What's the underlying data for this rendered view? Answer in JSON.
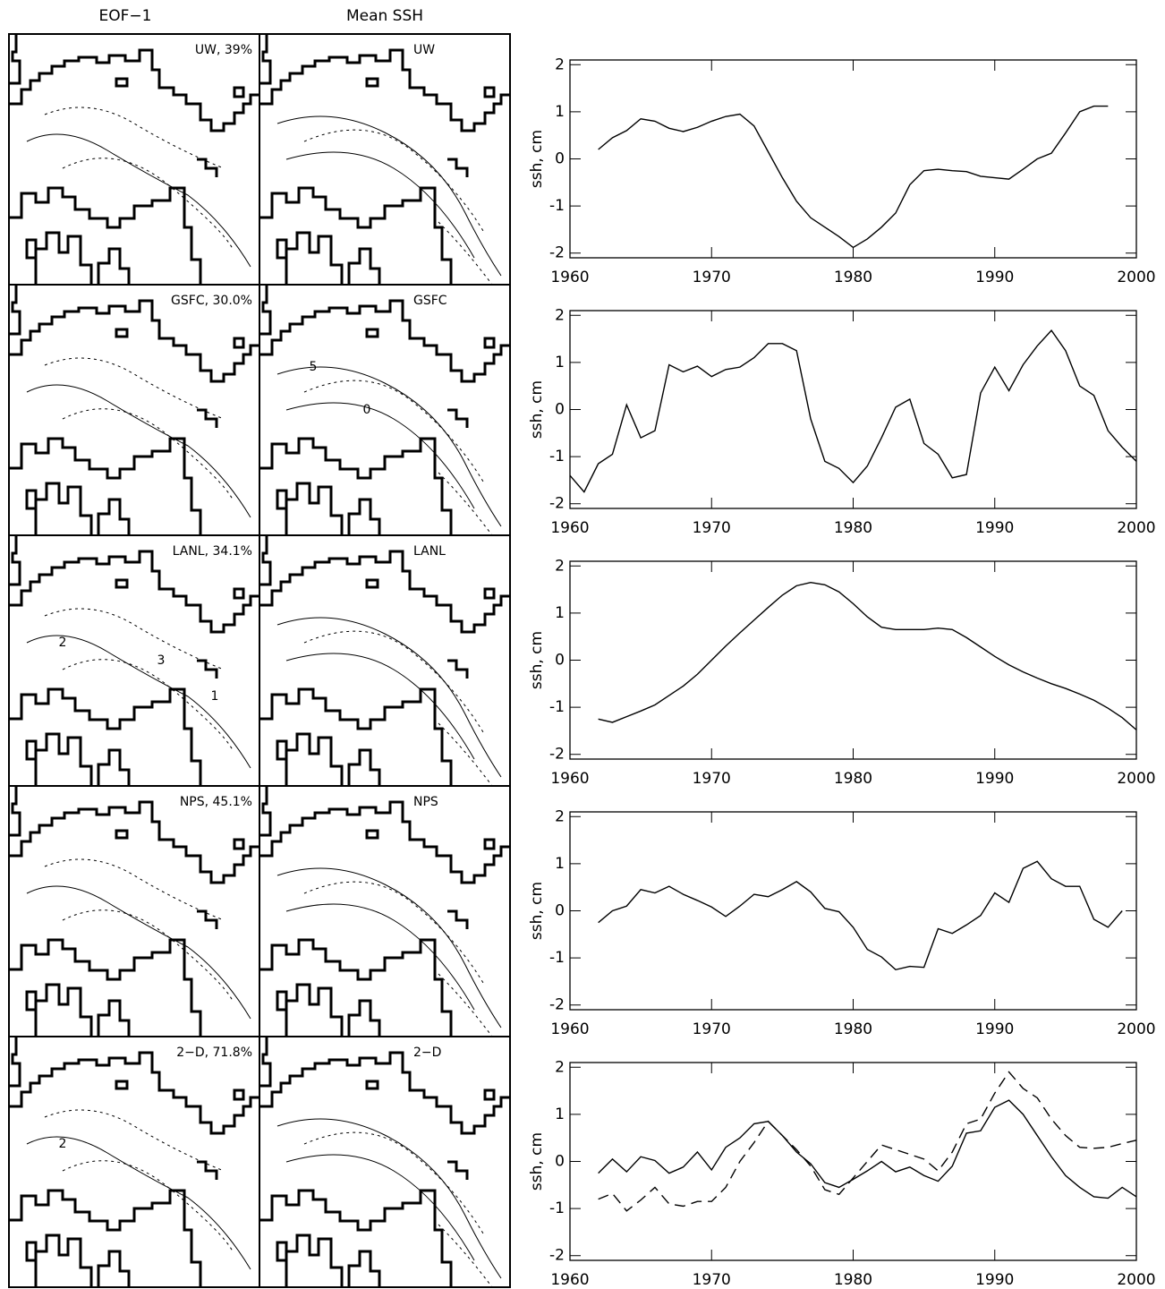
{
  "column_titles": [
    "EOF−1",
    "Mean SSH"
  ],
  "maps": [
    {
      "eof_label": "UW, 39%",
      "mean_label": "UW"
    },
    {
      "eof_label": "GSFC, 30.0%",
      "mean_label": "GSFC",
      "mean_contour_labels": [
        "5",
        "0"
      ]
    },
    {
      "eof_label": "LANL, 34.1%",
      "mean_label": "LANL",
      "eof_contour_labels": [
        "2",
        "3",
        "1"
      ]
    },
    {
      "eof_label": "NPS, 45.1%",
      "mean_label": "NPS"
    },
    {
      "eof_label": "2−D, 71.8%",
      "mean_label": "2−D",
      "eof_contour_labels": [
        "2"
      ]
    }
  ],
  "chart_data": [
    {
      "type": "line",
      "y_label": "ssh, cm",
      "xlim": [
        1960,
        2000
      ],
      "ylim": [
        -2.1,
        2.1
      ],
      "xticks": [
        1960,
        1970,
        1980,
        1990,
        2000
      ],
      "yticks": [
        -2,
        -1,
        0,
        1,
        2
      ],
      "x": [
        1962,
        1963,
        1964,
        1965,
        1966,
        1967,
        1968,
        1969,
        1970,
        1971,
        1972,
        1973,
        1974,
        1975,
        1976,
        1977,
        1978,
        1979,
        1980,
        1981,
        1982,
        1983,
        1984,
        1985,
        1986,
        1987,
        1988,
        1989,
        1990,
        1991,
        1992,
        1993,
        1994,
        1995,
        1996,
        1997,
        1998
      ],
      "series": [
        {
          "color": "#000000",
          "dash": "solid",
          "values": [
            0.2,
            0.45,
            0.6,
            0.85,
            0.8,
            0.65,
            0.58,
            0.67,
            0.8,
            0.9,
            0.95,
            0.7,
            0.15,
            -0.4,
            -0.9,
            -1.25,
            -1.45,
            -1.65,
            -1.88,
            -1.7,
            -1.45,
            -1.15,
            -0.55,
            -0.25,
            -0.22,
            -0.25,
            -0.27,
            -0.37,
            -0.4,
            -0.43,
            -0.22,
            0.0,
            0.12,
            0.55,
            1.0,
            1.12,
            1.12
          ]
        }
      ]
    },
    {
      "type": "line",
      "y_label": "ssh, cm",
      "xlim": [
        1960,
        2000
      ],
      "ylim": [
        -2.1,
        2.1
      ],
      "xticks": [
        1960,
        1970,
        1980,
        1990,
        2000
      ],
      "yticks": [
        -2,
        -1,
        0,
        1,
        2
      ],
      "x": [
        1960,
        1961,
        1962,
        1963,
        1964,
        1965,
        1966,
        1967,
        1968,
        1969,
        1970,
        1971,
        1972,
        1973,
        1974,
        1975,
        1976,
        1977,
        1978,
        1979,
        1980,
        1981,
        1982,
        1983,
        1984,
        1985,
        1986,
        1987,
        1988,
        1989,
        1990,
        1991,
        1992,
        1993,
        1994,
        1995,
        1996,
        1997,
        1998,
        1999,
        2000
      ],
      "series": [
        {
          "color": "#000000",
          "dash": "solid",
          "values": [
            -1.4,
            -1.75,
            -1.15,
            -0.95,
            0.1,
            -0.6,
            -0.45,
            0.95,
            0.8,
            0.92,
            0.7,
            0.85,
            0.9,
            1.1,
            1.4,
            1.4,
            1.25,
            -0.2,
            -1.1,
            -1.25,
            -1.55,
            -1.2,
            -0.6,
            0.05,
            0.22,
            -0.72,
            -0.95,
            -1.45,
            -1.38,
            0.35,
            0.9,
            0.4,
            0.95,
            1.35,
            1.68,
            1.25,
            0.5,
            0.3,
            -0.45,
            -0.8,
            -1.1
          ]
        }
      ]
    },
    {
      "type": "line",
      "y_label": "ssh, cm",
      "xlim": [
        1960,
        2000
      ],
      "ylim": [
        -2.1,
        2.1
      ],
      "xticks": [
        1960,
        1970,
        1980,
        1990,
        2000
      ],
      "yticks": [
        -2,
        -1,
        0,
        1,
        2
      ],
      "x": [
        1962,
        1963,
        1964,
        1965,
        1966,
        1967,
        1968,
        1969,
        1970,
        1971,
        1972,
        1973,
        1974,
        1975,
        1976,
        1977,
        1978,
        1979,
        1980,
        1981,
        1982,
        1983,
        1984,
        1985,
        1986,
        1987,
        1988,
        1989,
        1990,
        1991,
        1992,
        1993,
        1994,
        1995,
        1996,
        1997,
        1998,
        1999,
        2000
      ],
      "series": [
        {
          "color": "#000000",
          "dash": "solid",
          "values": [
            -1.25,
            -1.32,
            -1.2,
            -1.08,
            -0.95,
            -0.75,
            -0.55,
            -0.3,
            0.0,
            0.3,
            0.58,
            0.85,
            1.12,
            1.38,
            1.58,
            1.65,
            1.6,
            1.45,
            1.2,
            0.92,
            0.7,
            0.65,
            0.65,
            0.65,
            0.68,
            0.65,
            0.48,
            0.28,
            0.08,
            -0.1,
            -0.25,
            -0.38,
            -0.5,
            -0.6,
            -0.72,
            -0.85,
            -1.02,
            -1.22,
            -1.48
          ]
        }
      ]
    },
    {
      "type": "line",
      "y_label": "ssh, cm",
      "xlim": [
        1960,
        2000
      ],
      "ylim": [
        -2.1,
        2.1
      ],
      "xticks": [
        1960,
        1970,
        1980,
        1990,
        2000
      ],
      "yticks": [
        -2,
        -1,
        0,
        1,
        2
      ],
      "x": [
        1962,
        1963,
        1964,
        1965,
        1966,
        1967,
        1968,
        1969,
        1970,
        1971,
        1972,
        1973,
        1974,
        1975,
        1976,
        1977,
        1978,
        1979,
        1980,
        1981,
        1982,
        1983,
        1984,
        1985,
        1986,
        1987,
        1988,
        1989,
        1990,
        1991,
        1992,
        1993,
        1994,
        1995,
        1996,
        1997,
        1998,
        1999
      ],
      "series": [
        {
          "color": "#000000",
          "dash": "solid",
          "values": [
            -0.25,
            0.0,
            0.1,
            0.45,
            0.38,
            0.52,
            0.35,
            0.22,
            0.08,
            -0.12,
            0.1,
            0.35,
            0.3,
            0.45,
            0.62,
            0.4,
            0.05,
            -0.02,
            -0.35,
            -0.82,
            -0.98,
            -1.25,
            -1.18,
            -1.2,
            -0.38,
            -0.48,
            -0.3,
            -0.1,
            0.38,
            0.18,
            0.9,
            1.05,
            0.68,
            0.52,
            0.52,
            -0.18,
            -0.35,
            0.0
          ]
        }
      ]
    },
    {
      "type": "line",
      "y_label": "ssh, cm",
      "xlim": [
        1960,
        2000
      ],
      "ylim": [
        -2.1,
        2.1
      ],
      "xticks": [
        1960,
        1970,
        1980,
        1990,
        2000
      ],
      "yticks": [
        -2,
        -1,
        0,
        1,
        2
      ],
      "x": [
        1962,
        1963,
        1964,
        1965,
        1966,
        1967,
        1968,
        1969,
        1970,
        1971,
        1972,
        1973,
        1974,
        1975,
        1976,
        1977,
        1978,
        1979,
        1980,
        1981,
        1982,
        1983,
        1984,
        1985,
        1986,
        1987,
        1988,
        1989,
        1990,
        1991,
        1992,
        1993,
        1994,
        1995,
        1996,
        1997,
        1998,
        1999,
        2000
      ],
      "series": [
        {
          "color": "#000000",
          "dash": "solid",
          "values": [
            -0.25,
            0.05,
            -0.22,
            0.1,
            0.02,
            -0.25,
            -0.12,
            0.2,
            -0.18,
            0.3,
            0.5,
            0.8,
            0.85,
            0.55,
            0.2,
            -0.05,
            -0.45,
            -0.55,
            -0.38,
            -0.2,
            0.0,
            -0.22,
            -0.12,
            -0.3,
            -0.42,
            -0.1,
            0.6,
            0.65,
            1.15,
            1.3,
            1.0,
            0.55,
            0.1,
            -0.3,
            -0.55,
            -0.75,
            -0.78,
            -0.55,
            -0.75
          ]
        },
        {
          "color": "#000000",
          "dash": "dashed",
          "values": [
            -0.8,
            -0.68,
            -1.05,
            -0.82,
            -0.55,
            -0.9,
            -0.95,
            -0.85,
            -0.85,
            -0.55,
            0.0,
            0.4,
            0.85,
            0.55,
            0.25,
            -0.1,
            -0.6,
            -0.7,
            -0.35,
            0.0,
            0.35,
            0.25,
            0.15,
            0.05,
            -0.2,
            0.2,
            0.8,
            0.9,
            1.45,
            1.9,
            1.55,
            1.35,
            0.9,
            0.55,
            0.3,
            0.28,
            0.3,
            0.38,
            0.45
          ]
        }
      ]
    }
  ]
}
